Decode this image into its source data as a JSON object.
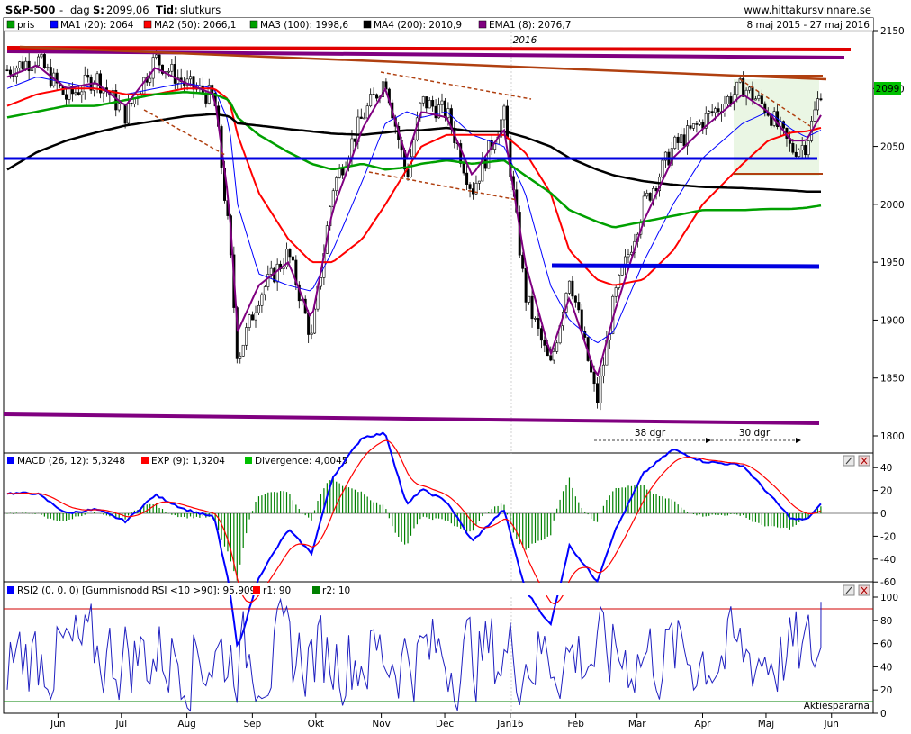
{
  "header": {
    "symbol": "S&P-500",
    "period_prefix": "-",
    "period": "dag",
    "last_prefix": "S:",
    "last_value": "2099,06",
    "type_prefix": "Tid:",
    "type_value": "slutkurs",
    "site": "www.hittakursvinnare.se"
  },
  "legend": {
    "items": [
      {
        "label": "pris",
        "color": "#00a000"
      },
      {
        "label": "MA1 (20): 2064",
        "color": "#0000ff"
      },
      {
        "label": "MA2 (50): 2066,1",
        "color": "#ff0000"
      },
      {
        "label": "MA3 (100): 1998,6",
        "color": "#00a000"
      },
      {
        "label": "MA4 (200): 2010,9",
        "color": "#000000"
      },
      {
        "label": "EMA1 (8): 2076,7",
        "color": "#800080"
      }
    ],
    "date_range": "8 maj 2015 - 27 maj 2016",
    "year_marker": "2016"
  },
  "price_panel": {
    "y_ticks": [
      "2150",
      "2100",
      "2050",
      "2000",
      "1950",
      "1900",
      "1850",
      "1800"
    ],
    "last_price_tag": "2099",
    "annotation_38": "38 dgr",
    "annotation_30": "30 dgr"
  },
  "macd_panel": {
    "title": "MACD (26, 12): 5,3248",
    "exp": "EXP (9): 1,3204",
    "divergence": "Divergence: 4,0045",
    "y_ticks": [
      "40",
      "20",
      "0",
      "-20",
      "-40",
      "-60"
    ]
  },
  "rsi_panel": {
    "title": "RSI2 (0, 0, 0) [Gummisnodd RSI <10 >90]: 95,909",
    "r1": "r1: 90",
    "r2": "r2: 10",
    "y_ticks": [
      "100",
      "80",
      "60",
      "40",
      "20",
      "0"
    ],
    "watermark": "Aktiespararna"
  },
  "x_axis": {
    "labels": [
      "Jun",
      "Jul",
      "Aug",
      "Sep",
      "Okt",
      "Nov",
      "Dec",
      "Jan16",
      "Feb",
      "Mar",
      "Apr",
      "Maj",
      "Jun"
    ]
  },
  "colors": {
    "price_up": "#00a000",
    "ma1": "#0000ff",
    "ma2": "#ff0000",
    "ma3": "#00a000",
    "ma4": "#000000",
    "ema": "#800080",
    "resistance_top": "#e00000",
    "trend_brown": "#b04010",
    "support_blue": "#0000e0",
    "support_purple": "#800080"
  },
  "chart_data": {
    "type": "line",
    "x": [
      "2015-05-08",
      "2015-05-22",
      "2015-06-05",
      "2015-06-19",
      "2015-07-03",
      "2015-07-17",
      "2015-07-31",
      "2015-08-14",
      "2015-08-21",
      "2015-08-25",
      "2015-09-04",
      "2015-09-18",
      "2015-09-29",
      "2015-10-09",
      "2015-10-23",
      "2015-11-03",
      "2015-11-13",
      "2015-11-20",
      "2015-12-02",
      "2015-12-14",
      "2015-12-29",
      "2016-01-08",
      "2016-01-20",
      "2016-01-29",
      "2016-02-11",
      "2016-02-19",
      "2016-03-04",
      "2016-03-18",
      "2016-04-01",
      "2016-04-20",
      "2016-05-02",
      "2016-05-13",
      "2016-05-20",
      "2016-05-27"
    ],
    "series": [
      {
        "name": "pris",
        "values": [
          2116,
          2126,
          2092,
          2110,
          2077,
          2126,
          2104,
          2092,
          1971,
          1867,
          1921,
          1958,
          1884,
          2014,
          2075,
          2109,
          2023,
          2089,
          2079,
          2012,
          2078,
          1922,
          1859,
          1940,
          1829,
          1917,
          1999,
          2049,
          2072,
          2102,
          2081,
          2047,
          2052,
          2099
        ]
      },
      {
        "name": "MA1 (20): 2064",
        "values": [
          2100,
          2110,
          2105,
          2100,
          2095,
          2100,
          2105,
          2100,
          2070,
          2000,
          1940,
          1930,
          1925,
          1960,
          2020,
          2070,
          2080,
          2075,
          2080,
          2060,
          2050,
          2010,
          1930,
          1900,
          1880,
          1890,
          1950,
          2000,
          2040,
          2070,
          2080,
          2065,
          2058,
          2064
        ]
      },
      {
        "name": "MA2 (50): 2066,1",
        "values": [
          2085,
          2095,
          2100,
          2100,
          2095,
          2095,
          2100,
          2100,
          2090,
          2060,
          2010,
          1970,
          1950,
          1950,
          1970,
          2000,
          2030,
          2050,
          2060,
          2060,
          2060,
          2045,
          2010,
          1960,
          1935,
          1930,
          1935,
          1960,
          2000,
          2035,
          2055,
          2062,
          2063,
          2066
        ]
      },
      {
        "name": "MA3 (100): 1998,6",
        "values": [
          2075,
          2080,
          2085,
          2085,
          2090,
          2095,
          2097,
          2095,
          2090,
          2075,
          2060,
          2045,
          2035,
          2030,
          2035,
          2030,
          2032,
          2035,
          2038,
          2035,
          2038,
          2025,
          2010,
          1995,
          1985,
          1980,
          1985,
          1990,
          1995,
          1995,
          1996,
          1996,
          1997,
          1999
        ]
      },
      {
        "name": "MA4 (200): 2010,9",
        "values": [
          2030,
          2045,
          2055,
          2062,
          2068,
          2072,
          2076,
          2078,
          2076,
          2070,
          2068,
          2065,
          2063,
          2061,
          2060,
          2062,
          2064,
          2064,
          2066,
          2063,
          2063,
          2058,
          2050,
          2040,
          2030,
          2025,
          2020,
          2017,
          2015,
          2014,
          2013,
          2012,
          2011,
          2011
        ]
      },
      {
        "name": "EMA1 (8): 2076,7",
        "values": [
          2110,
          2120,
          2100,
          2105,
          2085,
          2118,
          2105,
          2095,
          2000,
          1890,
          1930,
          1950,
          1900,
          1995,
          2065,
          2100,
          2040,
          2080,
          2075,
          2025,
          2065,
          1950,
          1870,
          1920,
          1850,
          1905,
          1985,
          2040,
          2065,
          2095,
          2080,
          2055,
          2055,
          2077
        ]
      }
    ],
    "ylim": [
      1790,
      2155
    ],
    "title": "S&P-500",
    "xlabel": "",
    "ylabel": "",
    "grid": false
  }
}
